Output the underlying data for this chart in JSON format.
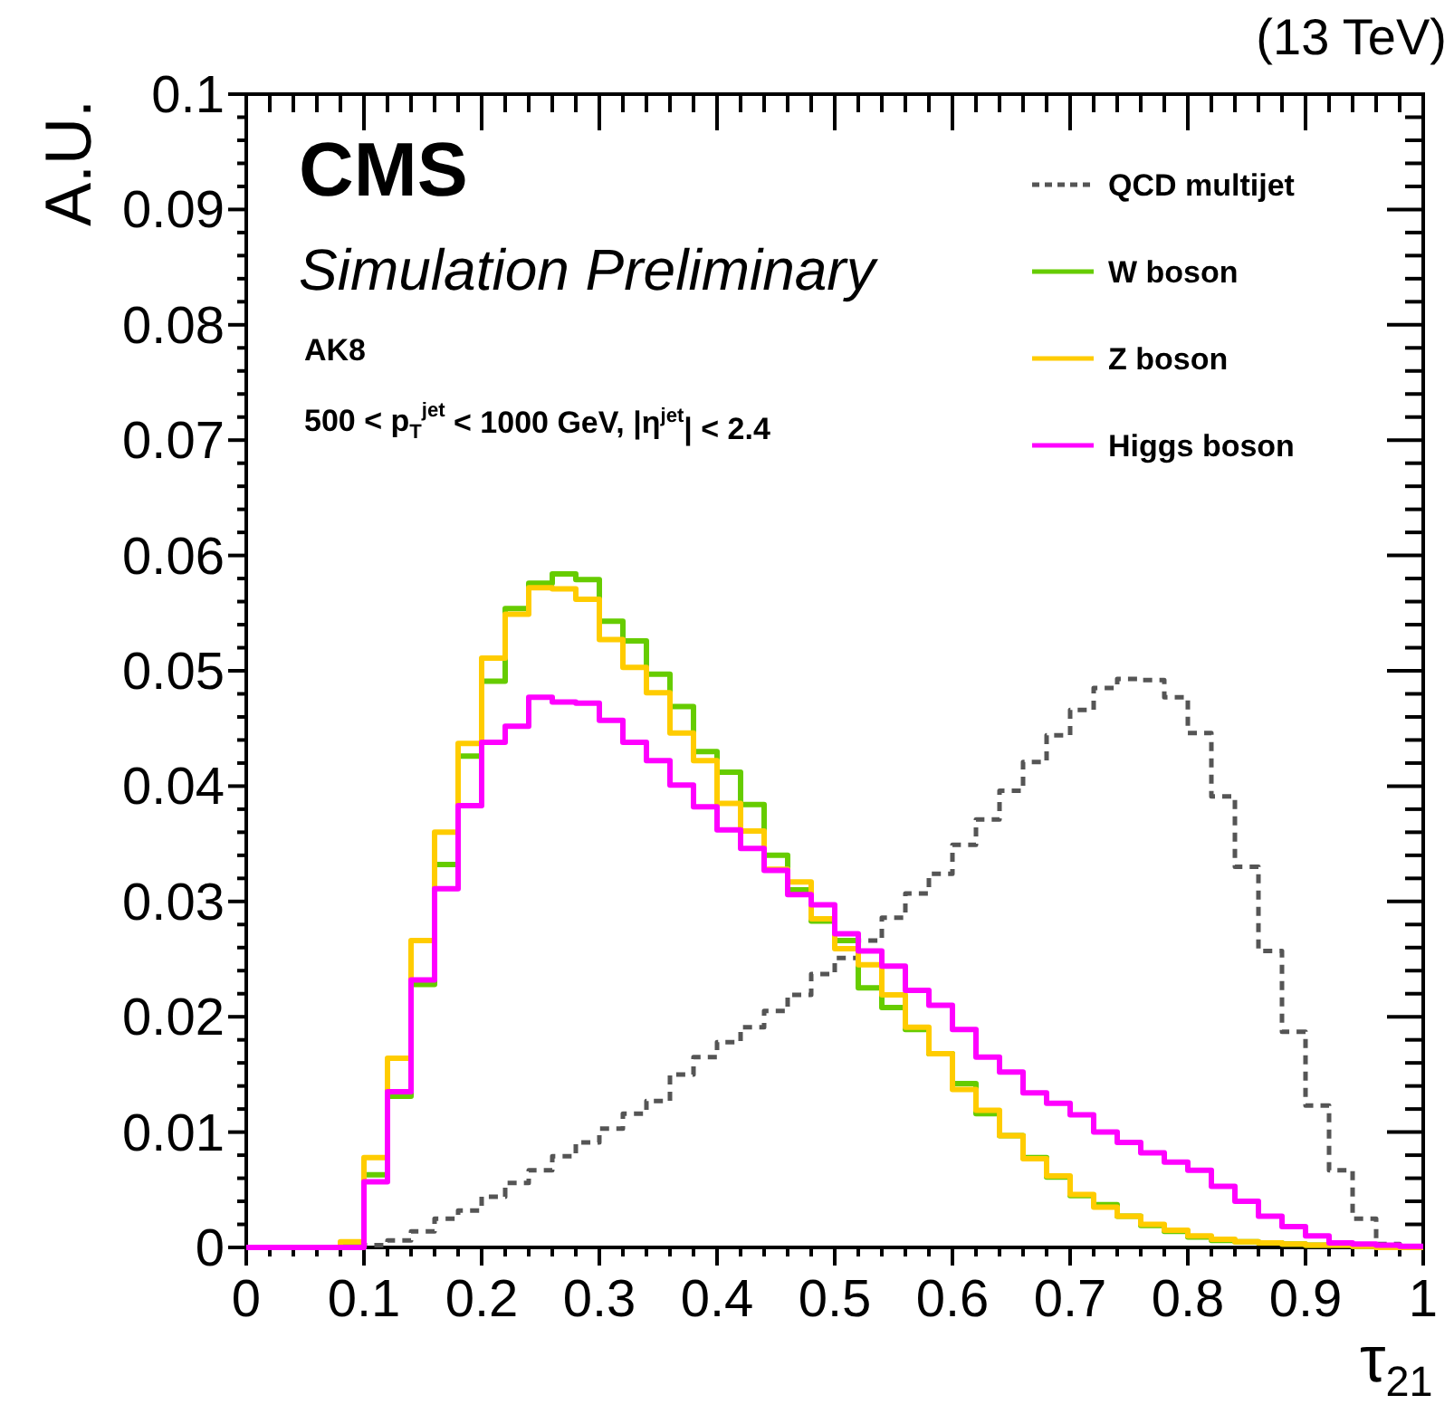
{
  "chart_data": {
    "type": "histogram",
    "title": "(13 TeV)",
    "xlabel": "τ$_{21}$",
    "ylabel": "A.U.",
    "annotations": [
      "CMS",
      "Simulation Preliminary",
      "AK8",
      "500 < p$_{T}$$^{jet}$ < 1000 GeV, |η$^{jet}$| < 2.4"
    ],
    "bins": [
      0,
      0.02,
      0.04,
      0.06,
      0.08,
      0.1,
      0.12,
      0.14,
      0.16,
      0.18,
      0.2,
      0.22,
      0.24,
      0.26,
      0.28,
      0.3,
      0.32,
      0.34,
      0.36,
      0.38,
      0.4,
      0.42,
      0.44,
      0.46,
      0.48,
      0.5,
      0.52,
      0.54,
      0.56,
      0.58,
      0.6,
      0.62,
      0.64,
      0.66,
      0.68,
      0.7,
      0.72,
      0.74,
      0.76,
      0.78,
      0.8,
      0.82,
      0.84,
      0.86,
      0.88,
      0.9,
      0.92,
      0.94,
      0.96,
      0.98,
      1
    ],
    "series": [
      {
        "name": "QCD multijet",
        "color": "#555555",
        "line_style": "dashed",
        "values": [
          0,
          0,
          0,
          0,
          0,
          0.0002,
          0.0006,
          0.0014,
          0.0025,
          0.0032,
          0.0044,
          0.0056,
          0.0067,
          0.0079,
          0.0091,
          0.0103,
          0.0116,
          0.0127,
          0.015,
          0.0165,
          0.0178,
          0.0191,
          0.0205,
          0.0219,
          0.0237,
          0.0251,
          0.0266,
          0.0286,
          0.0307,
          0.0324,
          0.0349,
          0.0371,
          0.0396,
          0.0421,
          0.0444,
          0.0466,
          0.0485,
          0.0493,
          0.0492,
          0.0477,
          0.0446,
          0.0391,
          0.033,
          0.0257,
          0.0187,
          0.0123,
          0.0067,
          0.0025,
          0.0003,
          0
        ]
      },
      {
        "name": "W boson",
        "color": "#66cc00",
        "line_style": "solid",
        "values": [
          0,
          0,
          0,
          0,
          0.0004,
          0.0063,
          0.0131,
          0.0228,
          0.0332,
          0.0426,
          0.0491,
          0.0554,
          0.0576,
          0.0584,
          0.0579,
          0.0543,
          0.0526,
          0.0497,
          0.0469,
          0.043,
          0.0412,
          0.0384,
          0.034,
          0.031,
          0.0283,
          0.0266,
          0.0225,
          0.0208,
          0.0189,
          0.0168,
          0.0142,
          0.0116,
          0.0097,
          0.0078,
          0.0061,
          0.0045,
          0.0037,
          0.0027,
          0.0019,
          0.0014,
          0.0009,
          0.0006,
          0.0005,
          0.0004,
          0.0003,
          0.0002,
          0.0002,
          0.0001,
          0,
          0
        ]
      },
      {
        "name": "Z boson",
        "color": "#ffcc00",
        "line_style": "solid",
        "values": [
          0,
          0,
          0,
          0,
          0.0005,
          0.0078,
          0.0164,
          0.0266,
          0.036,
          0.0437,
          0.0511,
          0.0549,
          0.0572,
          0.0571,
          0.0562,
          0.0527,
          0.0503,
          0.0481,
          0.0446,
          0.0422,
          0.0385,
          0.0361,
          0.0328,
          0.0317,
          0.0285,
          0.0259,
          0.0245,
          0.0219,
          0.0191,
          0.0168,
          0.0137,
          0.0119,
          0.0097,
          0.0077,
          0.0062,
          0.0046,
          0.0035,
          0.0027,
          0.002,
          0.0015,
          0.001,
          0.0007,
          0.0005,
          0.0004,
          0.0003,
          0.0002,
          0.0002,
          0.0001,
          0,
          0
        ]
      },
      {
        "name": "Higgs boson",
        "color": "#ff00ff",
        "line_style": "solid",
        "values": [
          0,
          0,
          0,
          0,
          0,
          0.0057,
          0.0135,
          0.0232,
          0.0311,
          0.0383,
          0.0438,
          0.0452,
          0.0477,
          0.0473,
          0.0472,
          0.0457,
          0.0438,
          0.0422,
          0.0401,
          0.0382,
          0.0362,
          0.0346,
          0.0327,
          0.0306,
          0.0297,
          0.0272,
          0.0257,
          0.0244,
          0.0223,
          0.021,
          0.0189,
          0.0165,
          0.0152,
          0.0134,
          0.0125,
          0.0115,
          0.01,
          0.0091,
          0.0082,
          0.0074,
          0.0067,
          0.0053,
          0.004,
          0.0027,
          0.0018,
          0.001,
          0.0004,
          0.0003,
          0.0002,
          0.0001
        ]
      }
    ],
    "xlim": [
      0,
      1
    ],
    "ylim": [
      0,
      0.1
    ],
    "xticks": [
      0,
      {
        "value": 0.02,
        "label": null
      },
      {
        "value": 0.04,
        "label": null
      },
      {
        "value": 0.06,
        "label": null
      },
      {
        "value": 0.08,
        "label": null
      },
      0.1,
      {
        "value": 0.12,
        "label": null
      },
      {
        "value": 0.14,
        "label": null
      },
      {
        "value": 0.16,
        "label": null
      },
      {
        "value": 0.18,
        "label": null
      },
      0.2,
      {
        "value": 0.22,
        "label": null
      },
      {
        "value": 0.24,
        "label": null
      },
      {
        "value": 0.26,
        "label": null
      },
      {
        "value": 0.28,
        "label": null
      },
      0.3,
      {
        "value": 0.32,
        "label": null
      },
      {
        "value": 0.34,
        "label": null
      },
      {
        "value": 0.36,
        "label": null
      },
      {
        "value": 0.38,
        "label": null
      },
      0.4,
      {
        "value": 0.42,
        "label": null
      },
      {
        "value": 0.44,
        "label": null
      },
      {
        "value": 0.46,
        "label": null
      },
      {
        "value": 0.48,
        "label": null
      },
      0.5,
      {
        "value": 0.52,
        "label": null
      },
      {
        "value": 0.54,
        "label": null
      },
      {
        "value": 0.56,
        "label": null
      },
      {
        "value": 0.58,
        "label": null
      },
      0.6,
      {
        "value": 0.62,
        "label": null
      },
      {
        "value": 0.64,
        "label": null
      },
      {
        "value": 0.66,
        "label": null
      },
      {
        "value": 0.68,
        "label": null
      },
      0.7,
      {
        "value": 0.72,
        "label": null
      },
      {
        "value": 0.74,
        "label": null
      },
      {
        "value": 0.76,
        "label": null
      },
      {
        "value": 0.78,
        "label": null
      },
      0.8,
      {
        "value": 0.82,
        "label": null
      },
      {
        "value": 0.84,
        "label": null
      },
      {
        "value": 0.86,
        "label": null
      },
      {
        "value": 0.88,
        "label": null
      },
      0.9,
      {
        "value": 0.92,
        "label": null
      },
      {
        "value": 0.94,
        "label": null
      },
      {
        "value": 0.96,
        "label": null
      },
      {
        "value": 0.98,
        "label": null
      },
      1
    ],
    "yticks": [
      0,
      {
        "value": 0.002,
        "label": null
      },
      {
        "value": 0.004,
        "label": null
      },
      {
        "value": 0.006,
        "label": null
      },
      {
        "value": 0.008,
        "label": null
      },
      0.01,
      {
        "value": 0.012,
        "label": null
      },
      {
        "value": 0.014,
        "label": null
      },
      {
        "value": 0.016,
        "label": null
      },
      {
        "value": 0.018,
        "label": null
      },
      0.02,
      {
        "value": 0.022,
        "label": null
      },
      {
        "value": 0.024,
        "label": null
      },
      {
        "value": 0.026,
        "label": null
      },
      {
        "value": 0.028,
        "label": null
      },
      0.03,
      {
        "value": 0.032,
        "label": null
      },
      {
        "value": 0.034,
        "label": null
      },
      {
        "value": 0.036,
        "label": null
      },
      {
        "value": 0.038,
        "label": null
      },
      0.04,
      {
        "value": 0.042,
        "label": null
      },
      {
        "value": 0.044,
        "label": null
      },
      {
        "value": 0.046,
        "label": null
      },
      {
        "value": 0.048,
        "label": null
      },
      0.05,
      {
        "value": 0.052,
        "label": null
      },
      {
        "value": 0.054,
        "label": null
      },
      {
        "value": 0.056,
        "label": null
      },
      {
        "value": 0.058,
        "label": null
      },
      0.06,
      {
        "value": 0.062,
        "label": null
      },
      {
        "value": 0.064,
        "label": null
      },
      {
        "value": 0.066,
        "label": null
      },
      {
        "value": 0.068,
        "label": null
      },
      0.07,
      {
        "value": 0.072,
        "label": null
      },
      {
        "value": 0.074,
        "label": null
      },
      {
        "value": 0.076,
        "label": null
      },
      {
        "value": 0.078,
        "label": null
      },
      0.08,
      {
        "value": 0.082,
        "label": null
      },
      {
        "value": 0.084,
        "label": null
      },
      {
        "value": 0.086,
        "label": null
      },
      {
        "value": 0.088,
        "label": null
      },
      0.09,
      {
        "value": 0.092,
        "label": null
      },
      {
        "value": 0.094,
        "label": null
      },
      {
        "value": 0.096,
        "label": null
      },
      {
        "value": 0.098,
        "label": null
      },
      0.1
    ],
    "grid": false,
    "legend": "top right"
  }
}
